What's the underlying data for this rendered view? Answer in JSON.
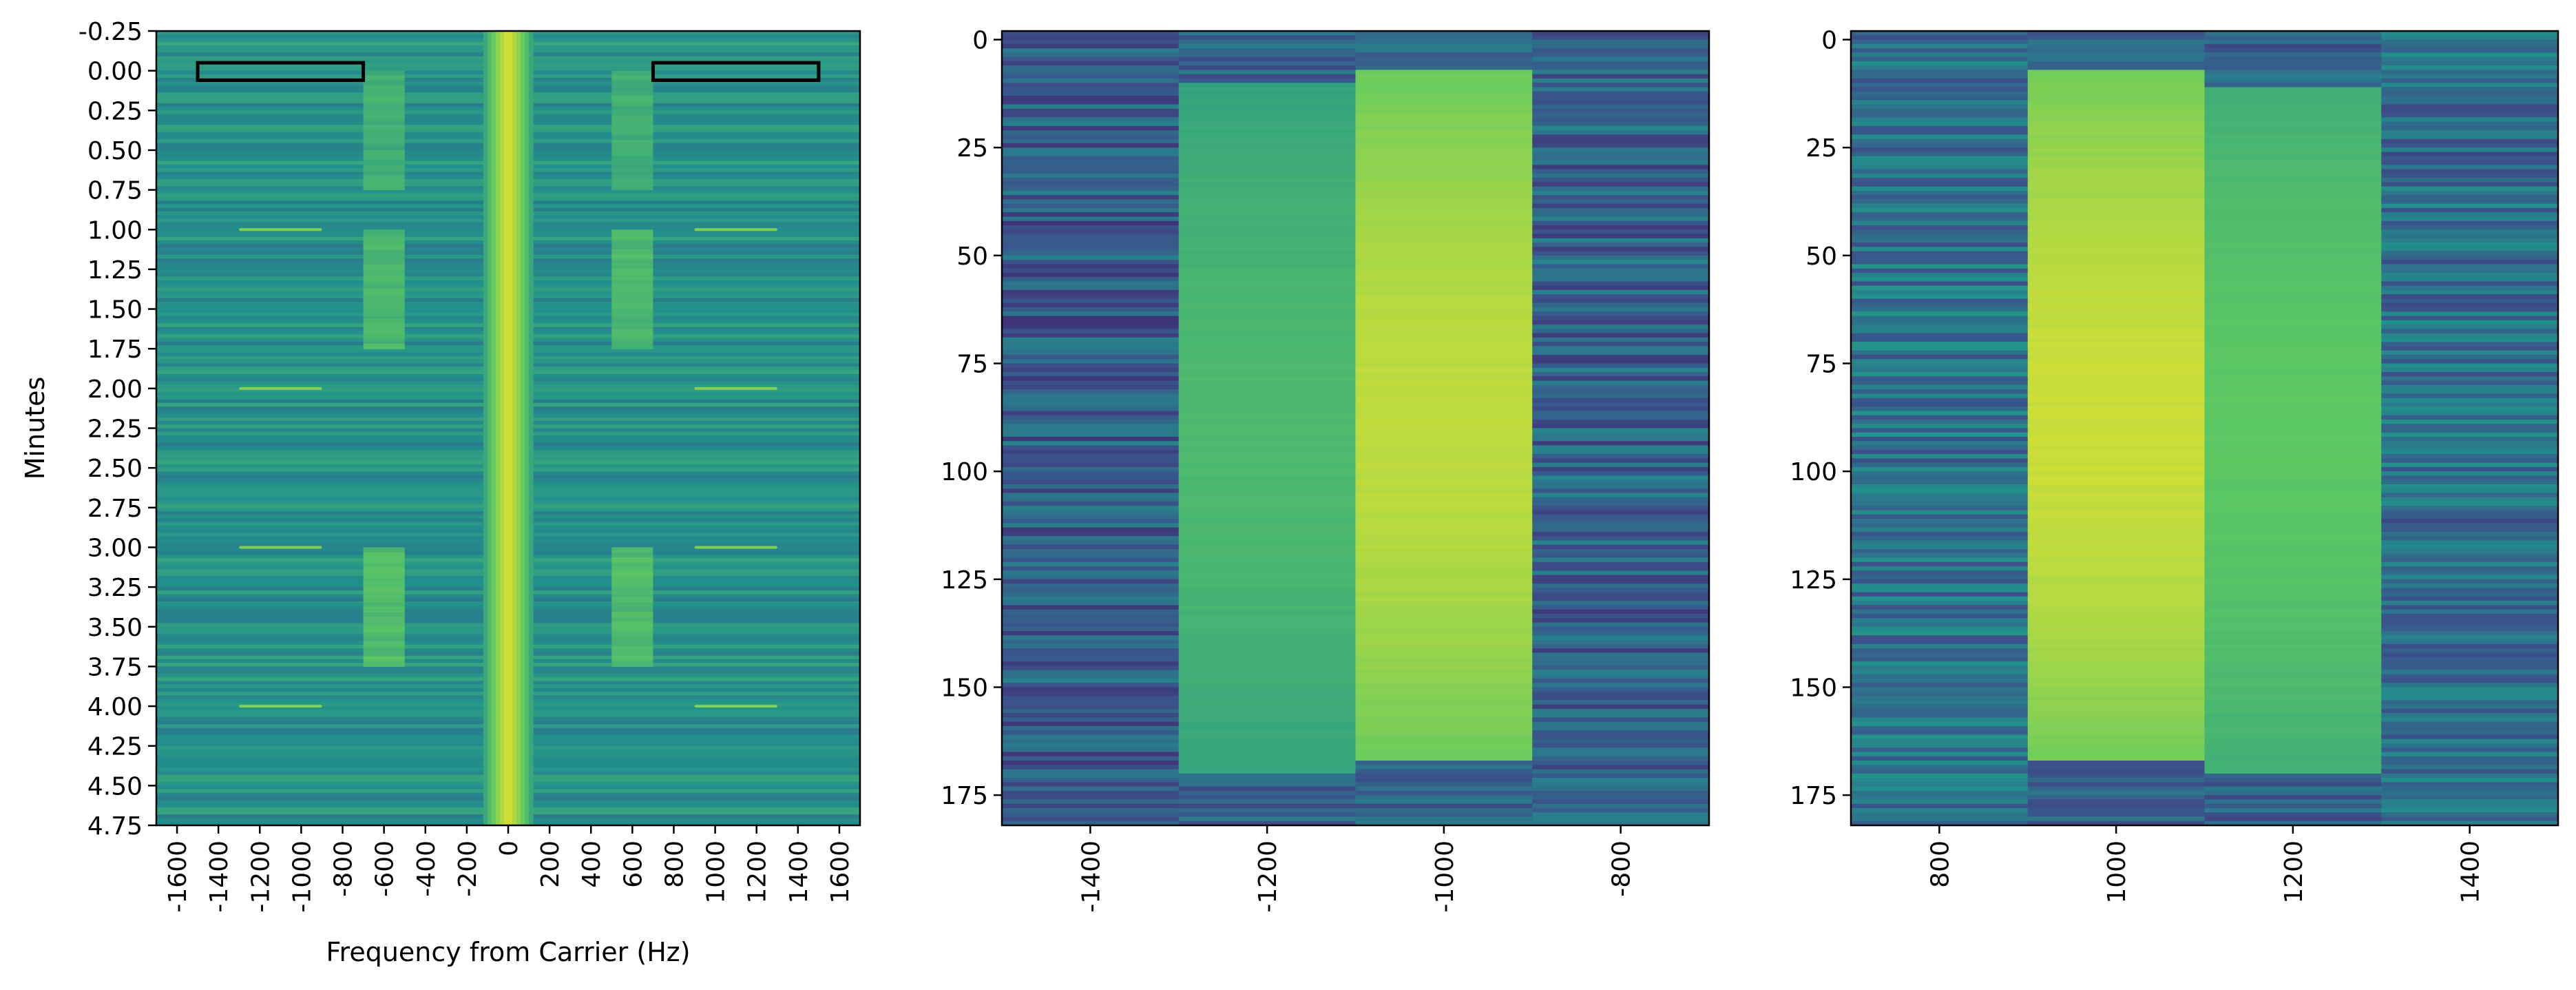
{
  "colors": {
    "colormap": [
      "#440154",
      "#3b528b",
      "#21918c",
      "#5ec962",
      "#fde725"
    ],
    "frame": "#000000",
    "box": "#000000"
  },
  "chart_data": [
    {
      "type": "heatmap",
      "name": "panel-spectrogram",
      "title": "",
      "xlabel": "Frequency from Carrier (Hz)",
      "ylabel": "Minutes",
      "xlim": [
        -1700,
        1700
      ],
      "ylim": [
        4.75,
        -0.25
      ],
      "xticks": [
        -1600,
        -1400,
        -1200,
        -1000,
        -800,
        -600,
        -400,
        -200,
        0,
        200,
        400,
        600,
        800,
        1000,
        1200,
        1400,
        1600
      ],
      "yticks": [
        "-0.25",
        "0.00",
        "0.25",
        "0.50",
        "0.75",
        "1.00",
        "1.25",
        "1.50",
        "1.75",
        "2.00",
        "2.25",
        "2.50",
        "2.75",
        "3.00",
        "3.25",
        "3.50",
        "3.75",
        "4.00",
        "4.25",
        "4.50",
        "4.75"
      ],
      "carrier_band": {
        "center": 0,
        "halfwidth": 120,
        "level": 0.95
      },
      "tone_bands": [
        {
          "x": [
            -700,
            -500
          ],
          "t": [
            0.0,
            0.75
          ],
          "level": 0.65
        },
        {
          "x": [
            500,
            700
          ],
          "t": [
            0.0,
            0.75
          ],
          "level": 0.65
        },
        {
          "x": [
            -700,
            -500
          ],
          "t": [
            1.0,
            1.75
          ],
          "level": 0.7
        },
        {
          "x": [
            500,
            700
          ],
          "t": [
            1.0,
            1.75
          ],
          "level": 0.7
        },
        {
          "x": [
            -700,
            -500
          ],
          "t": [
            3.0,
            3.75
          ],
          "level": 0.72
        },
        {
          "x": [
            500,
            700
          ],
          "t": [
            3.0,
            3.75
          ],
          "level": 0.72
        }
      ],
      "pulse_lines": [
        {
          "t": 1.0,
          "x": [
            -1300,
            -900
          ],
          "level": 0.8
        },
        {
          "t": 1.0,
          "x": [
            900,
            1300
          ],
          "level": 0.8
        },
        {
          "t": 2.0,
          "x": [
            -1300,
            -900
          ],
          "level": 0.8
        },
        {
          "t": 2.0,
          "x": [
            900,
            1300
          ],
          "level": 0.8
        },
        {
          "t": 3.0,
          "x": [
            -1300,
            -900
          ],
          "level": 0.8
        },
        {
          "t": 3.0,
          "x": [
            900,
            1300
          ],
          "level": 0.8
        },
        {
          "t": 4.0,
          "x": [
            -1300,
            -900
          ],
          "level": 0.8
        },
        {
          "t": 4.0,
          "x": [
            900,
            1300
          ],
          "level": 0.8
        }
      ],
      "annotation_boxes": [
        {
          "x": [
            -1500,
            -700
          ],
          "t": [
            -0.05,
            0.06
          ]
        },
        {
          "x": [
            700,
            1500
          ],
          "t": [
            -0.05,
            0.06
          ]
        }
      ]
    },
    {
      "type": "heatmap",
      "name": "panel-negative-zoom",
      "title": "",
      "xlabel": "",
      "ylabel": "",
      "xlim": [
        -1500,
        -700
      ],
      "ylim": [
        182,
        -2
      ],
      "xticks": [
        -1400,
        -1200,
        -1000,
        -800
      ],
      "yticks": [
        0,
        25,
        50,
        75,
        100,
        125,
        150,
        175
      ],
      "columns": [
        {
          "x": [
            -1500,
            -1300
          ],
          "level": 0.3,
          "on": [
            0,
            182
          ]
        },
        {
          "x": [
            -1300,
            -1100
          ],
          "level": 0.68,
          "on": [
            10,
            170
          ]
        },
        {
          "x": [
            -1100,
            -900
          ],
          "level": 0.9,
          "on": [
            7,
            167
          ]
        },
        {
          "x": [
            -900,
            -700
          ],
          "level": 0.32,
          "on": [
            0,
            182
          ]
        }
      ]
    },
    {
      "type": "heatmap",
      "name": "panel-positive-zoom",
      "title": "",
      "xlabel": "",
      "ylabel": "",
      "xlim": [
        700,
        1500
      ],
      "ylim": [
        182,
        -2
      ],
      "xticks": [
        800,
        1000,
        1200,
        1400
      ],
      "yticks": [
        0,
        25,
        50,
        75,
        100,
        125,
        150,
        175
      ],
      "columns": [
        {
          "x": [
            700,
            900
          ],
          "level": 0.38,
          "on": [
            0,
            182
          ]
        },
        {
          "x": [
            900,
            1100
          ],
          "level": 0.92,
          "on": [
            7,
            167
          ]
        },
        {
          "x": [
            1100,
            1300
          ],
          "level": 0.74,
          "on": [
            11,
            170
          ]
        },
        {
          "x": [
            1300,
            1500
          ],
          "level": 0.36,
          "on": [
            0,
            182
          ]
        }
      ]
    }
  ]
}
